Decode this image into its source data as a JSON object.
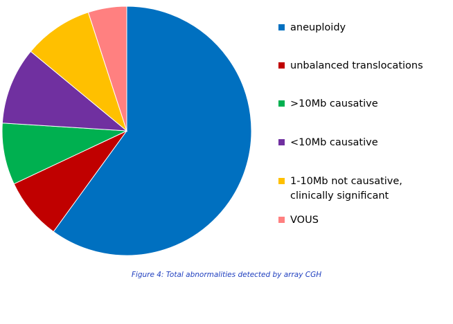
{
  "chart_data": {
    "type": "pie",
    "title": "",
    "start_angle": 0,
    "direction": "clockwise",
    "categories": [
      "aneuploidy",
      "unbalanced translocations",
      ">10Mb causative",
      "<10Mb causative",
      "1-10Mb not causative,\nclinically significant",
      "VOUS"
    ],
    "values": [
      60,
      8,
      8,
      10,
      9,
      5
    ],
    "colors": [
      "#0070c0",
      "#c00000",
      "#00b050",
      "#7030a0",
      "#ffc000",
      "#ff8080"
    ],
    "legend_position": "right"
  },
  "caption": "Figure 4: Total abnormalities detected by array CGH"
}
